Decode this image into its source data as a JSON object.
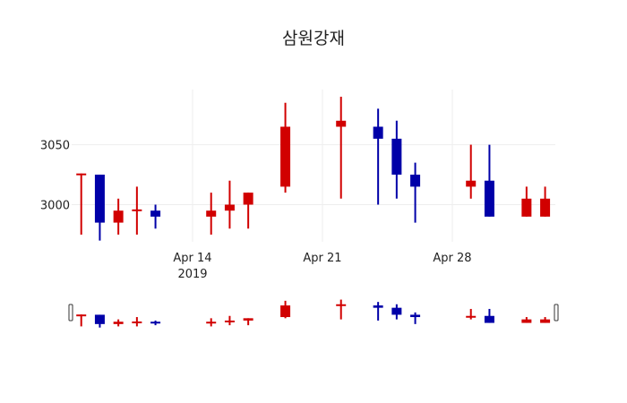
{
  "chart_data": {
    "type": "candlestick",
    "title": "삼원강재",
    "xlabel": "",
    "ylabel": "",
    "ylim": [
      2969,
      3096
    ],
    "yticks": [
      3000,
      3050
    ],
    "xticks": [
      {
        "date": "2019-04-14",
        "label": "Apr 14",
        "sublabel": "2019"
      },
      {
        "date": "2019-04-21",
        "label": "Apr 21",
        "sublabel": ""
      },
      {
        "date": "2019-04-28",
        "label": "Apr 28",
        "sublabel": ""
      }
    ],
    "increasing_color": "#d10000",
    "decreasing_color": "#0000a8",
    "grid": true,
    "rangeslider": true,
    "series": [
      {
        "date": "2019-04-08",
        "open": 3025,
        "high": 3026,
        "low": 2975,
        "close": 3026
      },
      {
        "date": "2019-04-09",
        "open": 3025,
        "high": 3025,
        "low": 2970,
        "close": 2985
      },
      {
        "date": "2019-04-10",
        "open": 2985,
        "high": 3005,
        "low": 2975,
        "close": 2995
      },
      {
        "date": "2019-04-11",
        "open": 2995,
        "high": 3015,
        "low": 2975,
        "close": 2996
      },
      {
        "date": "2019-04-12",
        "open": 2995,
        "high": 3000,
        "low": 2980,
        "close": 2990
      },
      {
        "date": "2019-04-15",
        "open": 2990,
        "high": 3010,
        "low": 2975,
        "close": 2995
      },
      {
        "date": "2019-04-16",
        "open": 2995,
        "high": 3020,
        "low": 2980,
        "close": 3000
      },
      {
        "date": "2019-04-17",
        "open": 3000,
        "high": 3010,
        "low": 2980,
        "close": 3010
      },
      {
        "date": "2019-04-19",
        "open": 3015,
        "high": 3085,
        "low": 3010,
        "close": 3065
      },
      {
        "date": "2019-04-22",
        "open": 3065,
        "high": 3090,
        "low": 3005,
        "close": 3070
      },
      {
        "date": "2019-04-24",
        "open": 3065,
        "high": 3080,
        "low": 3000,
        "close": 3055
      },
      {
        "date": "2019-04-25",
        "open": 3055,
        "high": 3070,
        "low": 3005,
        "close": 3025
      },
      {
        "date": "2019-04-26",
        "open": 3025,
        "high": 3035,
        "low": 2985,
        "close": 3015
      },
      {
        "date": "2019-04-29",
        "open": 3015,
        "high": 3050,
        "low": 3005,
        "close": 3020
      },
      {
        "date": "2019-04-30",
        "open": 3020,
        "high": 3050,
        "low": 2990,
        "close": 2990
      },
      {
        "date": "2019-05-02",
        "open": 2990,
        "high": 3015,
        "low": 2990,
        "close": 3005
      },
      {
        "date": "2019-05-03",
        "open": 2990,
        "high": 3015,
        "low": 2990,
        "close": 3005
      }
    ]
  }
}
